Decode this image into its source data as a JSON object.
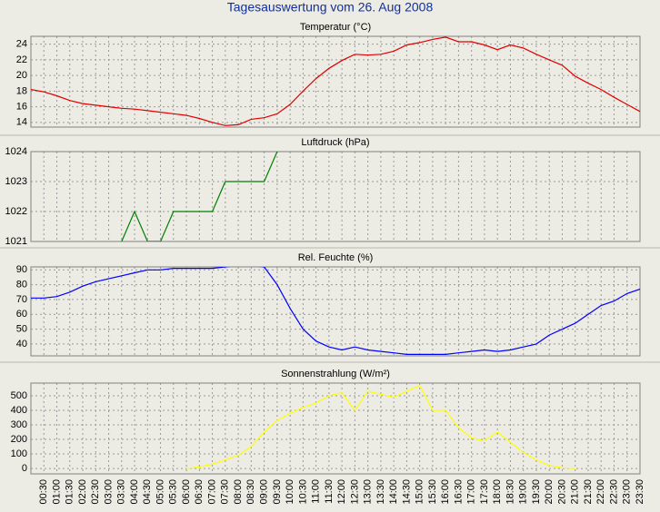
{
  "title": "Tagesauswertung vom 26. Aug 2008",
  "chart_data": [
    {
      "type": "line",
      "title": "Temperatur (°C)",
      "ylim": [
        13.4,
        25
      ],
      "yticks": [
        14,
        16,
        18,
        20,
        22,
        24
      ],
      "grid": true,
      "series": [
        {
          "name": "Temperatur",
          "color": "#e00000",
          "values": [
            18.2,
            17.9,
            17.4,
            16.8,
            16.4,
            16.2,
            16.0,
            15.8,
            15.7,
            15.5,
            15.3,
            15.1,
            14.9,
            14.5,
            14.0,
            13.6,
            13.7,
            14.4,
            14.6,
            15.1,
            16.3,
            18.0,
            19.6,
            20.9,
            21.9,
            22.7,
            22.6,
            22.7,
            23.1,
            23.9,
            24.2,
            24.6,
            24.9,
            24.3,
            24.3,
            23.9,
            23.3,
            23.9,
            23.5,
            22.7,
            22.0,
            21.3,
            19.9,
            19.0,
            18.2,
            17.2,
            16.3,
            15.4
          ]
        }
      ]
    },
    {
      "type": "line",
      "title": "Luftdruck (hPa)",
      "ylim": [
        1021,
        1024
      ],
      "yticks": [
        1021,
        1022,
        1023,
        1024
      ],
      "grid": true,
      "series": [
        {
          "name": "Luftdruck",
          "color": "#008000",
          "values": [
            null,
            null,
            null,
            null,
            null,
            null,
            null,
            1021,
            1022,
            1021,
            1021,
            1022,
            1022,
            1022,
            1022,
            1023,
            1023,
            1023,
            1023,
            1024,
            null,
            null,
            null,
            null,
            null,
            null,
            null,
            null,
            null,
            null,
            null,
            null,
            null,
            null,
            null,
            null,
            null,
            null,
            null,
            null,
            null,
            null,
            null,
            null,
            null,
            null,
            null,
            null
          ]
        }
      ]
    },
    {
      "type": "line",
      "title": "Rel. Feuchte (%)",
      "ylim": [
        32,
        92
      ],
      "yticks": [
        40,
        50,
        60,
        70,
        80,
        90
      ],
      "grid": true,
      "series": [
        {
          "name": "Rel. Feuchte",
          "color": "#0000ff",
          "values": [
            71,
            71,
            72,
            75,
            79,
            82,
            84,
            86,
            88,
            90,
            90,
            91,
            91,
            91,
            91,
            92,
            93,
            93,
            92,
            80,
            64,
            50,
            42,
            38,
            36,
            38,
            36,
            35,
            34,
            33,
            33,
            33,
            33,
            34,
            35,
            36,
            35,
            36,
            38,
            40,
            46,
            50,
            54,
            60,
            66,
            69,
            74,
            77
          ]
        }
      ]
    },
    {
      "type": "line",
      "title": "Sonnenstrahlung (W/m²)",
      "ylim": [
        -37,
        587
      ],
      "yticks": [
        0,
        100,
        200,
        300,
        400,
        500
      ],
      "grid": true,
      "categories": [
        null,
        "00:30",
        "01:00",
        "01:30",
        "02:00",
        "02:30",
        "03:00",
        "03:30",
        "04:00",
        "04:30",
        "05:00",
        "05:30",
        "06:00",
        "06:30",
        "07:00",
        "07:30",
        "08:00",
        "08:30",
        "09:00",
        "09:30",
        "10:00",
        "10:30",
        "11:00",
        "11:30",
        "12:00",
        "12:30",
        "13:00",
        "13:30",
        "14:00",
        "14:30",
        "15:00",
        "15:30",
        "16:00",
        "16:30",
        "17:00",
        "17:30",
        "18:00",
        "18:30",
        "19:00",
        "19:30",
        "20:00",
        "20:30",
        "21:00",
        "21:30",
        "22:00",
        "22:30",
        "23:00",
        "23:30"
      ],
      "series": [
        {
          "name": "Sonnenstrahlung",
          "color": "#ffff00",
          "values": [
            null,
            null,
            null,
            null,
            null,
            null,
            null,
            null,
            null,
            null,
            null,
            null,
            0,
            10,
            30,
            60,
            90,
            150,
            250,
            330,
            380,
            420,
            450,
            500,
            520,
            400,
            530,
            510,
            490,
            530,
            570,
            400,
            400,
            280,
            210,
            190,
            250,
            180,
            110,
            60,
            20,
            5,
            0,
            null,
            null,
            null,
            null,
            null
          ]
        }
      ]
    }
  ]
}
